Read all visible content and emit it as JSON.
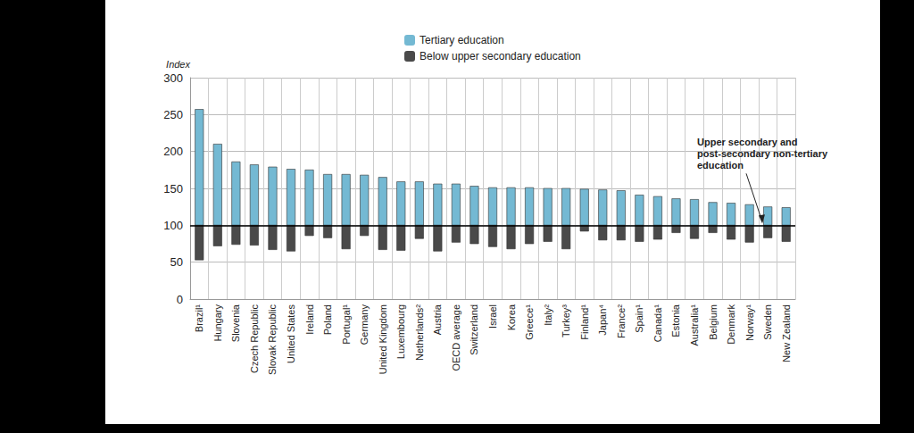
{
  "chart_data": {
    "type": "bar",
    "y_label": "Index",
    "categories": [
      "Brazil¹",
      "Hungary",
      "Slovenia",
      "Czech Republic",
      "Slovak Republic",
      "United States",
      "Ireland",
      "Poland",
      "Portugal¹",
      "Germany",
      "United Kingdom",
      "Luxembourg",
      "Netherlands²",
      "Austria",
      "OECD average",
      "Switzerland",
      "Israel",
      "Korea",
      "Greece¹",
      "Italy²",
      "Turkey³",
      "Finland¹",
      "Japan⁴",
      "France²",
      "Spain¹",
      "Canada¹",
      "Estonia",
      "Australia¹",
      "Belgium",
      "Denmark",
      "Norway¹",
      "Sweden",
      "New Zealand"
    ],
    "series": [
      {
        "name": "Tertiary education",
        "color": "#74b9d3",
        "values": [
          257,
          210,
          186,
          182,
          179,
          176,
          175,
          169,
          169,
          168,
          165,
          159,
          159,
          156,
          156,
          153,
          151,
          151,
          151,
          150,
          150,
          149,
          148,
          147,
          141,
          139,
          136,
          135,
          131,
          130,
          128,
          125,
          124
        ]
      },
      {
        "name": "Below upper secondary education",
        "color": "#4a4a4a",
        "values": [
          53,
          72,
          74,
          73,
          67,
          65,
          86,
          83,
          68,
          86,
          67,
          66,
          82,
          65,
          77,
          75,
          71,
          68,
          75,
          78,
          68,
          92,
          80,
          80,
          78,
          81,
          90,
          82,
          90,
          81,
          77,
          83,
          78
        ]
      }
    ],
    "reference_line": {
      "value": 100,
      "label": "Upper secondary and post-secondary non-tertiary education"
    },
    "ylim": [
      0,
      300
    ],
    "yticks": [
      0,
      50,
      100,
      150,
      200,
      250,
      300
    ],
    "grid": true,
    "legend": "top"
  }
}
